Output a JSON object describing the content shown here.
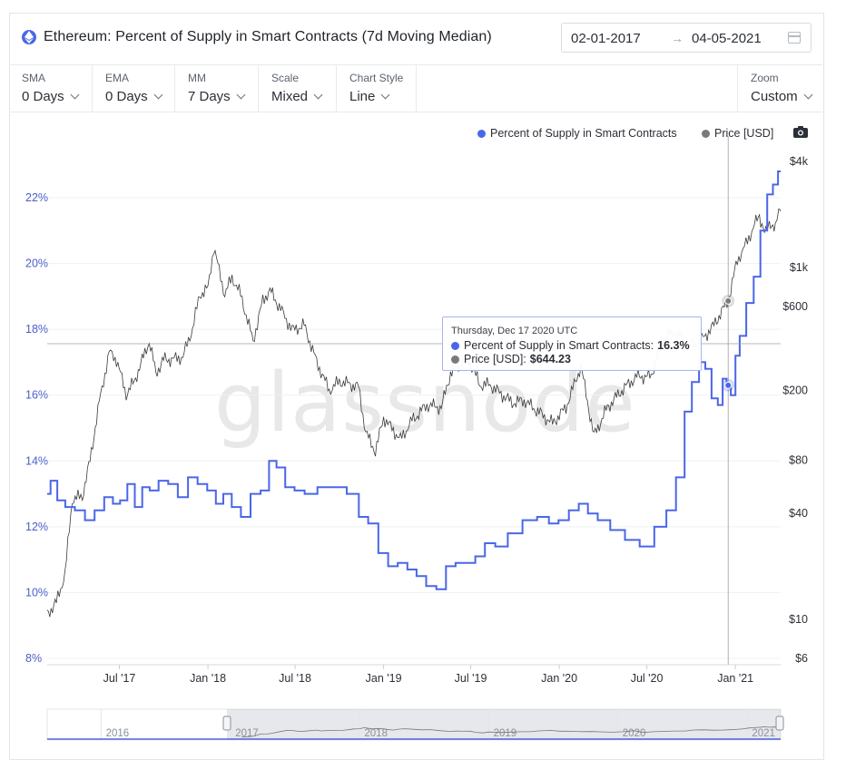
{
  "header": {
    "title": "Ethereum: Percent of Supply in Smart Contracts (7d Moving Median)",
    "date_start": "02-01-2017",
    "date_end": "04-05-2021",
    "arrow": "→"
  },
  "toolbar": [
    {
      "label": "SMA",
      "value": "0 Days"
    },
    {
      "label": "EMA",
      "value": "0 Days"
    },
    {
      "label": "MM",
      "value": "7 Days"
    },
    {
      "label": "Scale",
      "value": "Mixed"
    },
    {
      "label": "Chart Style",
      "value": "Line"
    }
  ],
  "zoom": {
    "label": "Zoom",
    "value": "Custom"
  },
  "legend": {
    "series1": "Percent of Supply in Smart Contracts",
    "series2": "Price [USD]"
  },
  "tooltip": {
    "date": "Thursday, Dec 17 2020 UTC",
    "row1_label": "Percent of Supply in Smart Contracts:",
    "row1_value": "16.3%",
    "row2_label": "Price [USD]:",
    "row2_value": "$644.23"
  },
  "watermark": "glassnode",
  "colors": {
    "supply": "#4a66e8",
    "price": "#333333",
    "axis_left": "#4a5ec9",
    "grid": "#eef0f3"
  },
  "chart_data": {
    "type": "line",
    "y_left_ticks": [
      "22%",
      "20%",
      "18%",
      "16%",
      "14%",
      "12%",
      "10%",
      "8%"
    ],
    "y_right_ticks": [
      "$4k",
      "$1k",
      "$600",
      "$200",
      "$80",
      "$40",
      "$10",
      "$6"
    ],
    "x_ticks": [
      "Jul '17",
      "Jan '18",
      "Jul '18",
      "Jan '19",
      "Jul '19",
      "Jan '20",
      "Jul '20",
      "Jan '21"
    ],
    "navigator_years": [
      "2016",
      "2017",
      "2018",
      "2019",
      "2020",
      "2021"
    ],
    "y_left_range": [
      8,
      23
    ],
    "y_right_scale": "log",
    "x_range": [
      "2017-02-01",
      "2021-04-05"
    ],
    "series": [
      {
        "name": "Percent of Supply in Smart Contracts",
        "axis": "left",
        "points": [
          [
            "2017-02-01",
            13.0
          ],
          [
            "2017-02-15",
            13.4
          ],
          [
            "2017-03-01",
            12.8
          ],
          [
            "2017-03-20",
            12.6
          ],
          [
            "2017-04-10",
            12.5
          ],
          [
            "2017-05-01",
            12.2
          ],
          [
            "2017-05-20",
            12.5
          ],
          [
            "2017-06-10",
            12.9
          ],
          [
            "2017-06-25",
            12.7
          ],
          [
            "2017-07-10",
            12.8
          ],
          [
            "2017-07-25",
            13.3
          ],
          [
            "2017-08-10",
            12.6
          ],
          [
            "2017-08-25",
            13.2
          ],
          [
            "2017-09-10",
            13.1
          ],
          [
            "2017-10-01",
            13.4
          ],
          [
            "2017-10-20",
            13.3
          ],
          [
            "2017-11-10",
            12.9
          ],
          [
            "2017-12-01",
            13.5
          ],
          [
            "2017-12-20",
            13.3
          ],
          [
            "2018-01-10",
            13.1
          ],
          [
            "2018-01-25",
            12.7
          ],
          [
            "2018-02-10",
            13.0
          ],
          [
            "2018-03-01",
            12.6
          ],
          [
            "2018-03-20",
            12.3
          ],
          [
            "2018-04-10",
            13.0
          ],
          [
            "2018-05-01",
            13.1
          ],
          [
            "2018-05-15",
            14.0
          ],
          [
            "2018-06-01",
            13.8
          ],
          [
            "2018-06-20",
            13.2
          ],
          [
            "2018-07-10",
            13.1
          ],
          [
            "2018-08-01",
            13.0
          ],
          [
            "2018-09-01",
            13.2
          ],
          [
            "2018-10-01",
            13.2
          ],
          [
            "2018-11-01",
            13.0
          ],
          [
            "2018-11-20",
            12.3
          ],
          [
            "2018-12-10",
            12.1
          ],
          [
            "2019-01-01",
            11.2
          ],
          [
            "2019-01-20",
            10.8
          ],
          [
            "2019-02-10",
            10.9
          ],
          [
            "2019-03-01",
            10.7
          ],
          [
            "2019-03-20",
            10.5
          ],
          [
            "2019-04-10",
            10.2
          ],
          [
            "2019-05-01",
            10.1
          ],
          [
            "2019-05-20",
            10.8
          ],
          [
            "2019-06-10",
            10.9
          ],
          [
            "2019-07-01",
            10.9
          ],
          [
            "2019-07-20",
            11.1
          ],
          [
            "2019-08-10",
            11.5
          ],
          [
            "2019-09-01",
            11.4
          ],
          [
            "2019-10-01",
            11.8
          ],
          [
            "2019-11-01",
            12.2
          ],
          [
            "2019-12-01",
            12.3
          ],
          [
            "2019-12-20",
            12.1
          ],
          [
            "2020-01-10",
            12.2
          ],
          [
            "2020-02-01",
            12.5
          ],
          [
            "2020-02-20",
            12.7
          ],
          [
            "2020-03-10",
            12.4
          ],
          [
            "2020-04-01",
            12.2
          ],
          [
            "2020-05-01",
            11.9
          ],
          [
            "2020-06-01",
            11.6
          ],
          [
            "2020-07-01",
            11.4
          ],
          [
            "2020-08-01",
            12.0
          ],
          [
            "2020-08-20",
            12.5
          ],
          [
            "2020-09-10",
            13.5
          ],
          [
            "2020-09-25",
            15.5
          ],
          [
            "2020-10-10",
            16.4
          ],
          [
            "2020-10-25",
            17.0
          ],
          [
            "2020-11-05",
            16.8
          ],
          [
            "2020-11-20",
            15.9
          ],
          [
            "2020-12-01",
            15.7
          ],
          [
            "2020-12-10",
            16.5
          ],
          [
            "2020-12-17",
            16.3
          ],
          [
            "2020-12-28",
            16.0
          ],
          [
            "2021-01-05",
            17.2
          ],
          [
            "2021-01-15",
            17.8
          ],
          [
            "2021-02-01",
            18.8
          ],
          [
            "2021-02-15",
            19.6
          ],
          [
            "2021-03-01",
            21.0
          ],
          [
            "2021-03-15",
            22.1
          ],
          [
            "2021-03-25",
            22.4
          ],
          [
            "2021-04-05",
            22.8
          ]
        ]
      },
      {
        "name": "Price [USD]",
        "axis": "right",
        "points": [
          [
            "2017-02-01",
            10.7
          ],
          [
            "2017-02-20",
            12.5
          ],
          [
            "2017-03-10",
            18
          ],
          [
            "2017-03-25",
            48
          ],
          [
            "2017-04-15",
            50
          ],
          [
            "2017-05-01",
            80
          ],
          [
            "2017-05-20",
            170
          ],
          [
            "2017-06-10",
            330
          ],
          [
            "2017-06-25",
            300
          ],
          [
            "2017-07-15",
            190
          ],
          [
            "2017-08-01",
            225
          ],
          [
            "2017-08-20",
            310
          ],
          [
            "2017-09-01",
            380
          ],
          [
            "2017-09-15",
            250
          ],
          [
            "2017-10-01",
            300
          ],
          [
            "2017-10-20",
            300
          ],
          [
            "2017-11-10",
            310
          ],
          [
            "2017-11-30",
            450
          ],
          [
            "2017-12-15",
            700
          ],
          [
            "2018-01-01",
            760
          ],
          [
            "2018-01-13",
            1300
          ],
          [
            "2018-02-05",
            700
          ],
          [
            "2018-02-20",
            880
          ],
          [
            "2018-03-10",
            700
          ],
          [
            "2018-04-05",
            380
          ],
          [
            "2018-04-25",
            650
          ],
          [
            "2018-05-10",
            740
          ],
          [
            "2018-06-01",
            580
          ],
          [
            "2018-06-25",
            440
          ],
          [
            "2018-07-20",
            470
          ],
          [
            "2018-08-15",
            290
          ],
          [
            "2018-09-10",
            200
          ],
          [
            "2018-10-01",
            225
          ],
          [
            "2018-11-10",
            210
          ],
          [
            "2018-11-25",
            115
          ],
          [
            "2018-12-15",
            90
          ],
          [
            "2019-01-01",
            140
          ],
          [
            "2019-02-05",
            105
          ],
          [
            "2019-03-01",
            135
          ],
          [
            "2019-04-01",
            165
          ],
          [
            "2019-05-01",
            160
          ],
          [
            "2019-05-20",
            250
          ],
          [
            "2019-06-25",
            310
          ],
          [
            "2019-07-20",
            215
          ],
          [
            "2019-08-10",
            215
          ],
          [
            "2019-09-25",
            170
          ],
          [
            "2019-10-20",
            175
          ],
          [
            "2019-11-20",
            150
          ],
          [
            "2019-12-18",
            130
          ],
          [
            "2020-01-15",
            160
          ],
          [
            "2020-02-15",
            275
          ],
          [
            "2020-03-13",
            110
          ],
          [
            "2020-04-10",
            160
          ],
          [
            "2020-05-10",
            200
          ],
          [
            "2020-06-10",
            240
          ],
          [
            "2020-07-10",
            240
          ],
          [
            "2020-08-01",
            390
          ],
          [
            "2020-08-30",
            430
          ],
          [
            "2020-09-25",
            355
          ],
          [
            "2020-10-20",
            380
          ],
          [
            "2020-11-15",
            460
          ],
          [
            "2020-11-28",
            530
          ],
          [
            "2020-12-17",
            644.23
          ],
          [
            "2021-01-05",
            1100
          ],
          [
            "2021-01-20",
            1300
          ],
          [
            "2021-02-10",
            1750
          ],
          [
            "2021-02-20",
            1950
          ],
          [
            "2021-03-05",
            1550
          ],
          [
            "2021-03-15",
            1800
          ],
          [
            "2021-03-25",
            1700
          ],
          [
            "2021-04-01",
            2000
          ],
          [
            "2021-04-05",
            2080
          ]
        ]
      }
    ],
    "crosshair_date": "2020-12-17"
  }
}
